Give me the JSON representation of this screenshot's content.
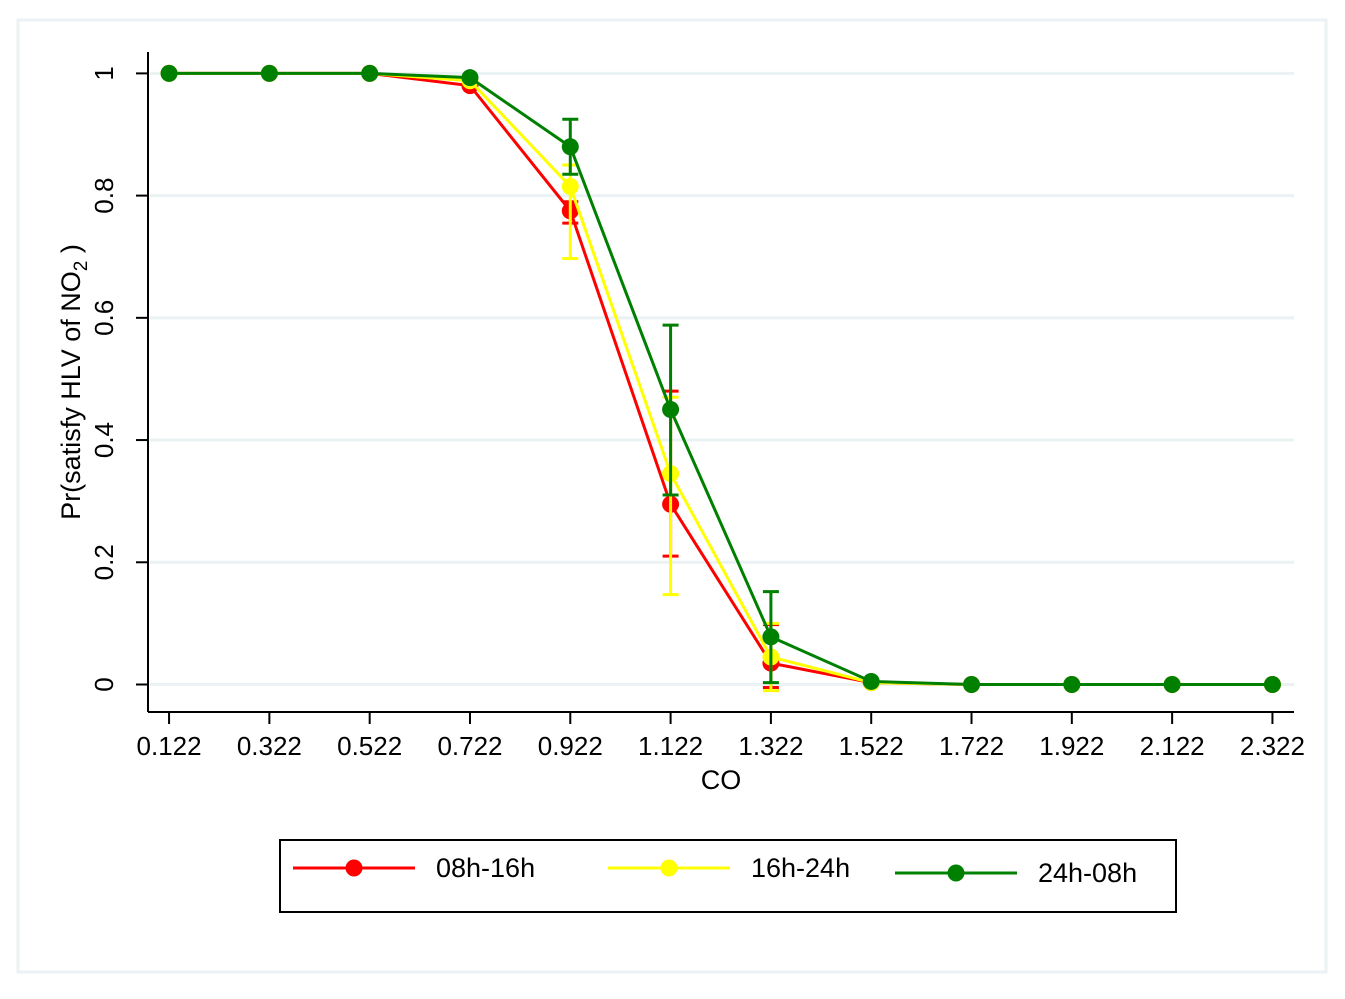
{
  "chart_data": {
    "type": "line",
    "xlabel": "CO",
    "ylabel": {
      "prefix": "Pr(satisfy HLV of NO",
      "subscript": "2",
      "suffix": " )"
    },
    "x": [
      0.122,
      0.322,
      0.522,
      0.722,
      0.922,
      1.122,
      1.322,
      1.522,
      1.722,
      1.922,
      2.122,
      2.322
    ],
    "x_tick_labels": [
      "0.122",
      "0.322",
      "0.522",
      "0.722",
      "0.922",
      "1.122",
      "1.322",
      "1.522",
      "1.722",
      "1.922",
      "2.122",
      "2.322"
    ],
    "xlim": [
      0.08,
      2.365
    ],
    "y_ticks": [
      0,
      0.2,
      0.4,
      0.6,
      0.8,
      1
    ],
    "y_tick_labels": [
      "0",
      "0.2",
      "0.4",
      "0.6",
      "0.8",
      "1"
    ],
    "ylim": [
      -0.045,
      1.035
    ],
    "grid": "horizontal",
    "legend_position": "bottom",
    "series": [
      {
        "name": "08h-16h",
        "color": "#ff0000",
        "values": [
          1,
          1,
          1,
          0.98,
          0.775,
          0.295,
          0.035,
          0.003,
          0,
          0,
          0,
          0
        ],
        "ci": [
          null,
          null,
          null,
          null,
          [
            0.755,
            0.79
          ],
          [
            0.21,
            0.48
          ],
          [
            -0.005,
            0.098
          ],
          null,
          null,
          null,
          null,
          null
        ]
      },
      {
        "name": "16h-24h",
        "color": "#ffff00",
        "values": [
          1,
          1,
          1,
          0.988,
          0.815,
          0.345,
          0.045,
          0.003,
          0,
          0,
          0,
          0
        ],
        "ci": [
          null,
          null,
          null,
          null,
          [
            0.697,
            0.85
          ],
          [
            0.147,
            0.47
          ],
          [
            -0.01,
            0.1
          ],
          null,
          null,
          null,
          null,
          null
        ]
      },
      {
        "name": "24h-08h",
        "color": "#008000",
        "values": [
          1,
          1,
          1,
          0.993,
          0.88,
          0.45,
          0.078,
          0.005,
          0,
          0,
          0,
          0
        ],
        "ci": [
          null,
          null,
          null,
          null,
          [
            0.835,
            0.925
          ],
          [
            0.31,
            0.588
          ],
          [
            0.003,
            0.152
          ],
          null,
          null,
          null,
          null,
          null
        ]
      }
    ]
  }
}
